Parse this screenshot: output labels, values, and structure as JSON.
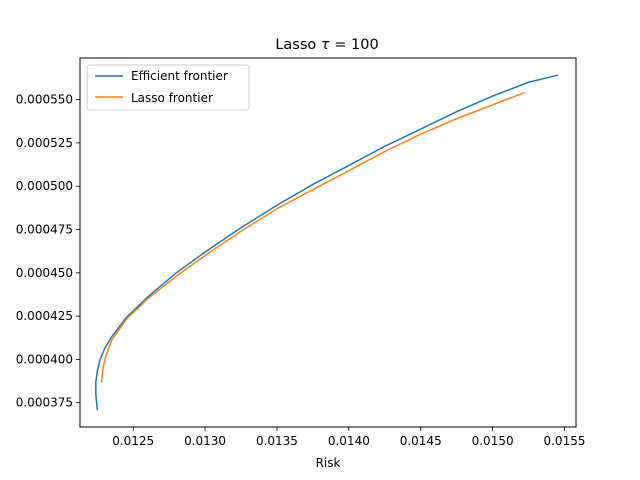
{
  "chart_data": {
    "type": "line",
    "title_prefix": "Lasso ",
    "title_symbol": "τ",
    "title_suffix": " = 100",
    "xlabel": "Risk",
    "ylabel": "",
    "xlim": [
      0.01213,
      0.01558
    ],
    "ylim": [
      0.000361,
      0.000574
    ],
    "xticks": [
      0.0125,
      0.013,
      0.0135,
      0.014,
      0.0145,
      0.015,
      0.0155
    ],
    "xtick_labels": [
      "0.0125",
      "0.0130",
      "0.0135",
      "0.0140",
      "0.0145",
      "0.0150",
      "0.0155"
    ],
    "yticks": [
      0.000375,
      0.0004,
      0.000425,
      0.00045,
      0.000475,
      0.0005,
      0.000525,
      0.00055
    ],
    "ytick_labels": [
      "0.000375",
      "0.000400",
      "0.000425",
      "0.000450",
      "0.000475",
      "0.000500",
      "0.000525",
      "0.000550"
    ],
    "grid": false,
    "legend_position": "top-left",
    "series": [
      {
        "name": "Efficient frontier",
        "color": "#1f77b4",
        "x": [
          0.01225,
          0.01224,
          0.01224,
          0.01225,
          0.01227,
          0.0123,
          0.01235,
          0.01245,
          0.0126,
          0.0128,
          0.013,
          0.01325,
          0.0135,
          0.01375,
          0.014,
          0.01425,
          0.0145,
          0.01475,
          0.015,
          0.01525,
          0.01545
        ],
        "y": [
          0.000371,
          0.00038,
          0.000387,
          0.000393,
          0.0004,
          0.000406,
          0.000413,
          0.000424,
          0.000436,
          0.00045,
          0.000462,
          0.000476,
          0.000489,
          0.000501,
          0.000512,
          0.000523,
          0.000533,
          0.000543,
          0.000552,
          0.00056,
          0.000564
        ]
      },
      {
        "name": "Lasso frontier",
        "color": "#ff7f0e",
        "x": [
          0.01228,
          0.01229,
          0.01231,
          0.01235,
          0.01245,
          0.0126,
          0.0128,
          0.013,
          0.01325,
          0.0135,
          0.01375,
          0.014,
          0.01425,
          0.0145,
          0.01475,
          0.015,
          0.01522
        ],
        "y": [
          0.000387,
          0.000395,
          0.000402,
          0.000411,
          0.000423,
          0.000435,
          0.000448,
          0.00046,
          0.000474,
          0.000487,
          0.000498,
          0.000509,
          0.00052,
          0.00053,
          0.000539,
          0.000547,
          0.000554
        ]
      }
    ]
  }
}
